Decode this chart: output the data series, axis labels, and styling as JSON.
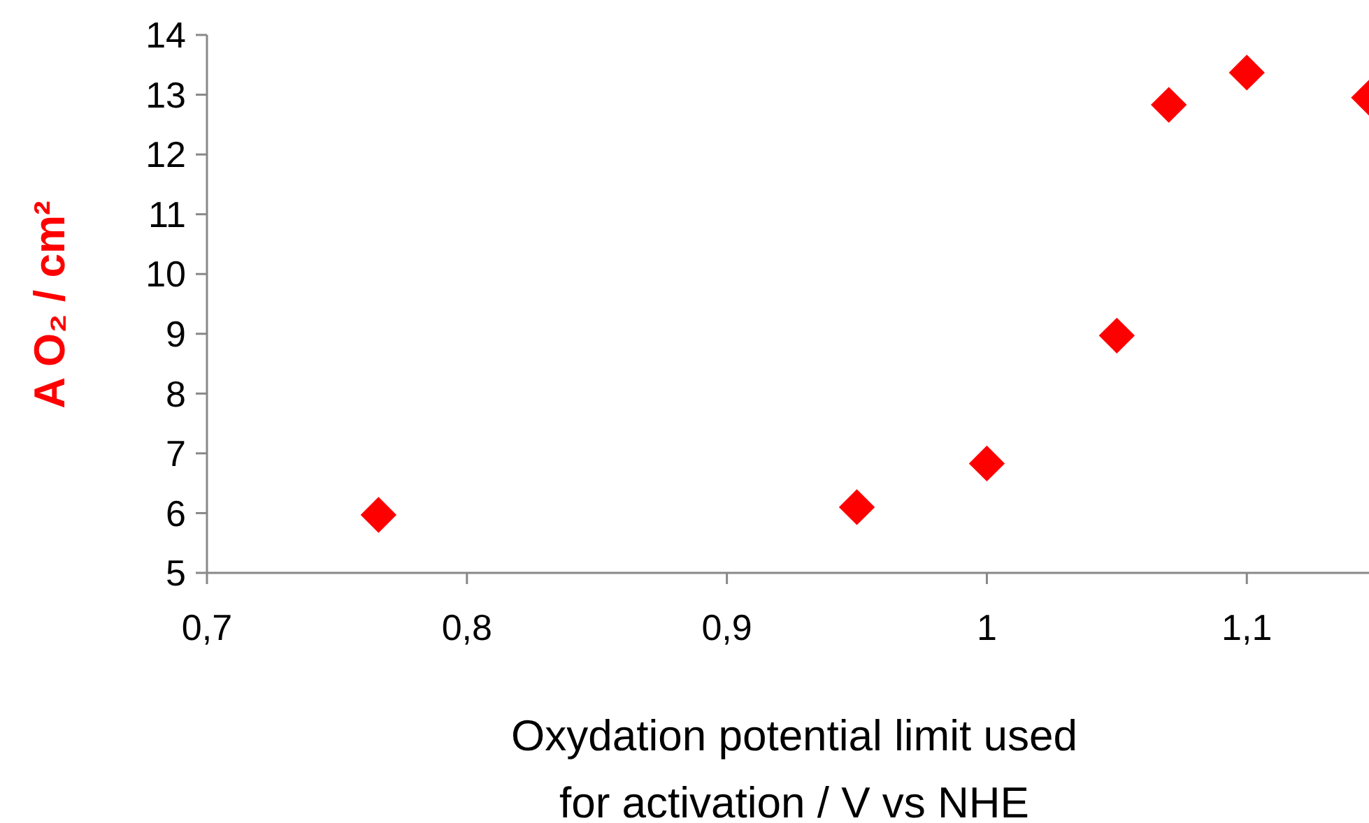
{
  "chart_data": {
    "type": "scatter",
    "xlabel": "Oxydation potential limit used for activation / V vs NHE",
    "ylabel": "A O₂ / cm²",
    "x": [
      0.766,
      0.95,
      1.0,
      1.05,
      1.07,
      1.1,
      1.147
    ],
    "series": [
      {
        "color": "#ff0000",
        "values": [
          5.97,
          6.1,
          6.83,
          8.97,
          12.83,
          13.37,
          12.95
        ]
      }
    ],
    "xlim": [
      0.7,
      1.147
    ],
    "xticks": [
      {
        "value": 0.7,
        "label": "0,7"
      },
      {
        "value": 0.8,
        "label": "0,8"
      },
      {
        "value": 0.9,
        "label": "0,9"
      },
      1,
      {
        "value": 1.1,
        "label": "1,1"
      }
    ],
    "ylim": [
      5,
      14
    ],
    "yticks": [
      5,
      6,
      7,
      8,
      9,
      10,
      11,
      12,
      13,
      14
    ],
    "grid": false,
    "marker": "diamond"
  }
}
